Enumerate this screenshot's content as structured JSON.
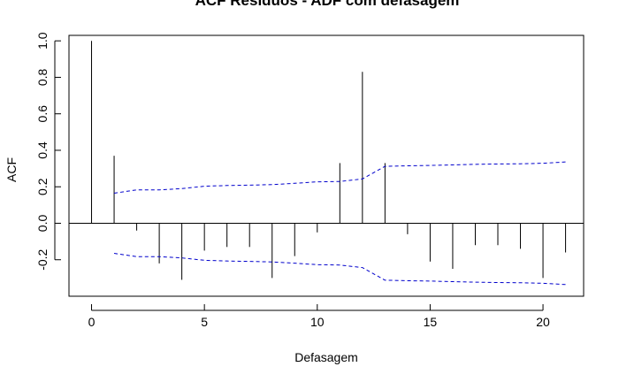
{
  "chart_data": {
    "type": "bar",
    "title": "ACF Resíduos - ADF com defasagem",
    "xlabel": "Defasagem",
    "ylabel": "ACF",
    "xlim": [
      -1,
      21.8
    ],
    "ylim": [
      -0.4,
      1.03
    ],
    "x_ticks": [
      0,
      5,
      10,
      15,
      20
    ],
    "y_ticks": [
      -0.2,
      0.0,
      0.2,
      0.4,
      0.6,
      0.8,
      1.0
    ],
    "x_tick_labels": [
      "0",
      "5",
      "10",
      "15",
      "20"
    ],
    "y_tick_labels": [
      "-0.2",
      "0.0",
      "0.2",
      "0.4",
      "0.6",
      "0.8",
      "1.0"
    ],
    "grid": false,
    "zero_line": true,
    "lags": [
      0,
      1,
      2,
      3,
      4,
      5,
      6,
      7,
      8,
      9,
      10,
      11,
      12,
      13,
      14,
      15,
      16,
      17,
      18,
      19,
      20,
      21
    ],
    "acf": [
      1.0,
      0.37,
      -0.04,
      -0.22,
      -0.31,
      -0.15,
      -0.13,
      -0.13,
      -0.3,
      -0.18,
      -0.05,
      0.33,
      0.83,
      0.33,
      -0.06,
      -0.21,
      -0.25,
      -0.12,
      -0.12,
      -0.14,
      -0.3,
      -0.16
    ],
    "confidence_band": {
      "lags": [
        1,
        2,
        3,
        4,
        5,
        6,
        7,
        8,
        9,
        10,
        11,
        12,
        13,
        14,
        15,
        16,
        17,
        18,
        19,
        20,
        21
      ],
      "upper": [
        0.165,
        0.183,
        0.183,
        0.19,
        0.203,
        0.207,
        0.209,
        0.212,
        0.219,
        0.227,
        0.229,
        0.243,
        0.312,
        0.315,
        0.317,
        0.32,
        0.323,
        0.325,
        0.326,
        0.329,
        0.336
      ],
      "color": "#0000cc"
    },
    "bar_color": "#000000"
  }
}
